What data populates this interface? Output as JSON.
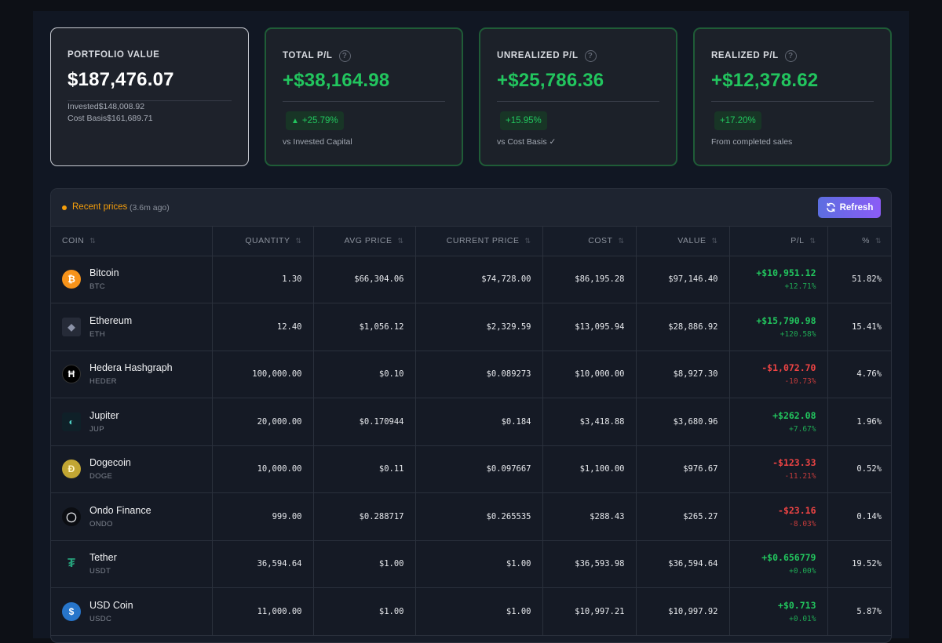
{
  "cards": {
    "portfolio": {
      "label": "PORTFOLIO VALUE",
      "value": "$187,476.07",
      "invested": "Invested$148,008.92",
      "cost_basis": "Cost Basis$161,689.71"
    },
    "total_pl": {
      "label": "TOTAL P/L",
      "value": "+$38,164.98",
      "chip": "+25.79%",
      "note": "vs Invested Capital"
    },
    "unrealized_pl": {
      "label": "UNREALIZED P/L",
      "value": "+$25,786.36",
      "chip": "+15.95%",
      "note": "vs Cost Basis ✓"
    },
    "realized_pl": {
      "label": "REALIZED P/L",
      "value": "+$12,378.62",
      "chip": "+17.20%",
      "note": "From completed sales"
    },
    "help_glyph": "?"
  },
  "status": {
    "text": "Recent prices",
    "age": "(3.6m ago)",
    "color": "#f59e0b"
  },
  "refresh_label": "Refresh",
  "columns": [
    "COIN",
    "QUANTITY",
    "AVG PRICE",
    "CURRENT PRICE",
    "COST",
    "VALUE",
    "P/L",
    "%"
  ],
  "sort_glyph": "⇅",
  "rows": [
    {
      "name": "Bitcoin",
      "symbol": "BTC",
      "icon": "bitcoin-icon",
      "glyph": "₿",
      "qty": "1.30",
      "avg": "$66,304.06",
      "current": "$74,728.00",
      "cost": "$86,195.28",
      "value": "$97,146.40",
      "pl": "+$10,951.12",
      "pl_pct": "+12.71%",
      "pct": "51.82%",
      "positive": true
    },
    {
      "name": "Ethereum",
      "symbol": "ETH",
      "icon": "ethereum-icon",
      "glyph": "◆",
      "qty": "12.40",
      "avg": "$1,056.12",
      "current": "$2,329.59",
      "cost": "$13,095.94",
      "value": "$28,886.92",
      "pl": "+$15,790.98",
      "pl_pct": "+120.58%",
      "pct": "15.41%",
      "positive": true
    },
    {
      "name": "Hedera Hashgraph",
      "symbol": "HEDER",
      "icon": "hedera-icon",
      "glyph": "Ħ",
      "qty": "100,000.00",
      "avg": "$0.10",
      "current": "$0.089273",
      "cost": "$10,000.00",
      "value": "$8,927.30",
      "pl": "-$1,072.70",
      "pl_pct": "-10.73%",
      "pct": "4.76%",
      "positive": false
    },
    {
      "name": "Jupiter",
      "symbol": "JUP",
      "icon": "jupiter-icon",
      "glyph": "◐",
      "qty": "20,000.00",
      "avg": "$0.170944",
      "current": "$0.184",
      "cost": "$3,418.88",
      "value": "$3,680.96",
      "pl": "+$262.08",
      "pl_pct": "+7.67%",
      "pct": "1.96%",
      "positive": true
    },
    {
      "name": "Dogecoin",
      "symbol": "DOGE",
      "icon": "dogecoin-icon",
      "glyph": "Ð",
      "qty": "10,000.00",
      "avg": "$0.11",
      "current": "$0.097667",
      "cost": "$1,100.00",
      "value": "$976.67",
      "pl": "-$123.33",
      "pl_pct": "-11.21%",
      "pct": "0.52%",
      "positive": false
    },
    {
      "name": "Ondo Finance",
      "symbol": "ONDO",
      "icon": "ondo-icon",
      "glyph": "◯",
      "qty": "999.00",
      "avg": "$0.288717",
      "current": "$0.265535",
      "cost": "$288.43",
      "value": "$265.27",
      "pl": "-$23.16",
      "pl_pct": "-8.03%",
      "pct": "0.14%",
      "positive": false
    },
    {
      "name": "Tether",
      "symbol": "USDT",
      "icon": "tether-icon",
      "glyph": "₮",
      "qty": "36,594.64",
      "avg": "$1.00",
      "current": "$1.00",
      "cost": "$36,593.98",
      "value": "$36,594.64",
      "pl": "+$0.656779",
      "pl_pct": "+0.00%",
      "pct": "19.52%",
      "positive": true
    },
    {
      "name": "USD Coin",
      "symbol": "USDC",
      "icon": "usdc-icon",
      "glyph": "$",
      "qty": "11,000.00",
      "avg": "$1.00",
      "current": "$1.00",
      "cost": "$10,997.21",
      "value": "$10,997.92",
      "pl": "+$0.713",
      "pl_pct": "+0.01%",
      "pct": "5.87%",
      "positive": true
    }
  ],
  "colors": {
    "positive": "#22c55e",
    "negative": "#ef4444",
    "accent": "#6366f1"
  }
}
